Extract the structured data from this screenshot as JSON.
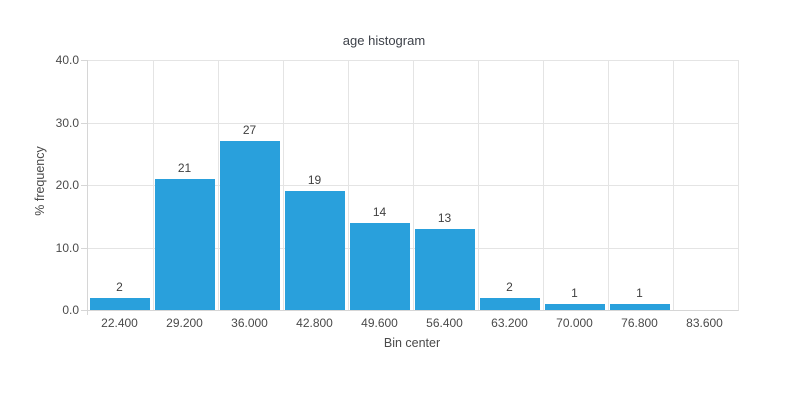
{
  "chart_data": {
    "type": "bar",
    "title": "age histogram",
    "xlabel": "Bin center",
    "ylabel": "% frequency",
    "categories": [
      "22.400",
      "29.200",
      "36.000",
      "42.800",
      "49.600",
      "56.400",
      "63.200",
      "70.000",
      "76.800",
      "83.600"
    ],
    "values": [
      2,
      21,
      27,
      19,
      14,
      13,
      2,
      1,
      1,
      0
    ],
    "bar_labels": [
      "2",
      "21",
      "27",
      "19",
      "14",
      "13",
      "2",
      "1",
      "1",
      ""
    ],
    "ylim": [
      0,
      40
    ],
    "yticks": [
      0,
      10,
      20,
      30,
      40
    ],
    "ytick_labels": [
      "0.0",
      "10.0",
      "20.0",
      "30.0",
      "40.0"
    ],
    "grid": true,
    "legend_position": "none",
    "colors": {
      "bar": "#29a0dc",
      "grid": "#e4e4e4",
      "axis": "#d6d6d6",
      "tick_text": "#4a4a4a",
      "title_text": "#3d4149",
      "value_label_text": "#3f3f3f",
      "background": "#ffffff"
    }
  }
}
